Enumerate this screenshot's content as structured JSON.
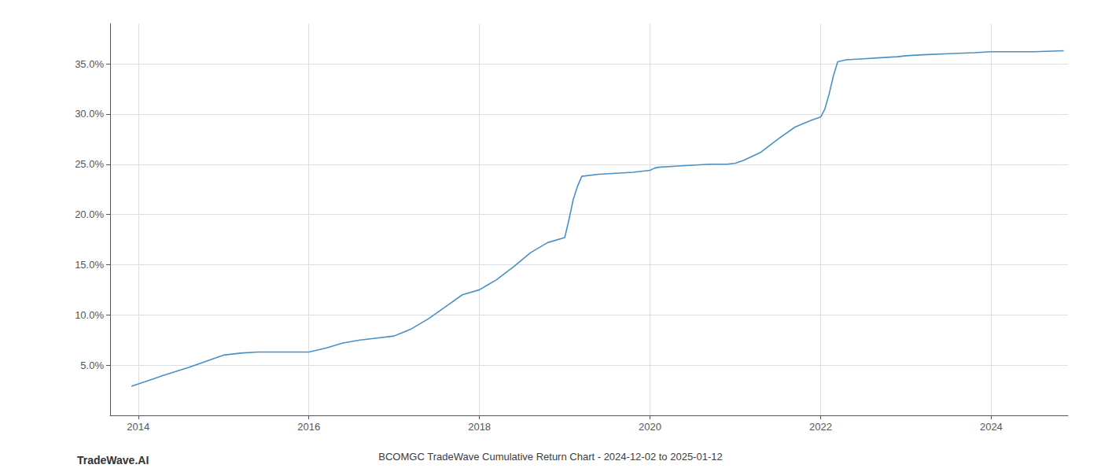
{
  "chart_data": {
    "type": "line",
    "title": "BCOMGC TradeWave Cumulative Return Chart - 2024-12-02 to 2025-01-12",
    "annotations": [
      "TradeWave.AI"
    ],
    "color": "#4a90c4",
    "grid": true,
    "xlim": [
      2013.67,
      2024.9
    ],
    "ylim": [
      0.0,
      0.39
    ],
    "xticks": [
      2014,
      2016,
      2018,
      2020,
      2022,
      2024
    ],
    "yticks": [
      {
        "value": 0.05,
        "label": "5.0%"
      },
      {
        "value": 0.1,
        "label": "10.0%"
      },
      {
        "value": 0.15,
        "label": "15.0%"
      },
      {
        "value": 0.2,
        "label": "20.0%"
      },
      {
        "value": 0.25,
        "label": "25.0%"
      },
      {
        "value": 0.3,
        "label": "30.0%"
      },
      {
        "value": 0.35,
        "label": "35.0%"
      }
    ],
    "x": [
      2013.92,
      2014.1,
      2014.3,
      2014.6,
      2014.9,
      2015.0,
      2015.2,
      2015.4,
      2015.6,
      2015.8,
      2016.0,
      2016.1,
      2016.2,
      2016.4,
      2016.6,
      2016.8,
      2017.0,
      2017.2,
      2017.4,
      2017.6,
      2017.8,
      2018.0,
      2018.1,
      2018.2,
      2018.4,
      2018.6,
      2018.8,
      2019.0,
      2019.05,
      2019.1,
      2019.15,
      2019.2,
      2019.4,
      2019.6,
      2019.8,
      2020.0,
      2020.05,
      2020.1,
      2020.3,
      2020.5,
      2020.7,
      2020.9,
      2021.0,
      2021.1,
      2021.3,
      2021.5,
      2021.7,
      2021.9,
      2022.0,
      2022.05,
      2022.1,
      2022.15,
      2022.2,
      2022.3,
      2022.5,
      2022.7,
      2022.9,
      2023.0,
      2023.2,
      2023.5,
      2023.8,
      2024.0,
      2024.2,
      2024.5,
      2024.85
    ],
    "values": [
      0.029,
      0.034,
      0.04,
      0.048,
      0.057,
      0.06,
      0.062,
      0.063,
      0.063,
      0.063,
      0.063,
      0.065,
      0.067,
      0.072,
      0.075,
      0.077,
      0.079,
      0.086,
      0.096,
      0.108,
      0.12,
      0.125,
      0.13,
      0.135,
      0.148,
      0.162,
      0.172,
      0.177,
      0.195,
      0.215,
      0.228,
      0.238,
      0.24,
      0.241,
      0.242,
      0.244,
      0.246,
      0.247,
      0.248,
      0.249,
      0.25,
      0.25,
      0.251,
      0.254,
      0.262,
      0.275,
      0.287,
      0.294,
      0.297,
      0.305,
      0.32,
      0.338,
      0.352,
      0.354,
      0.355,
      0.356,
      0.357,
      0.358,
      0.359,
      0.36,
      0.361,
      0.362,
      0.362,
      0.362,
      0.363
    ]
  }
}
